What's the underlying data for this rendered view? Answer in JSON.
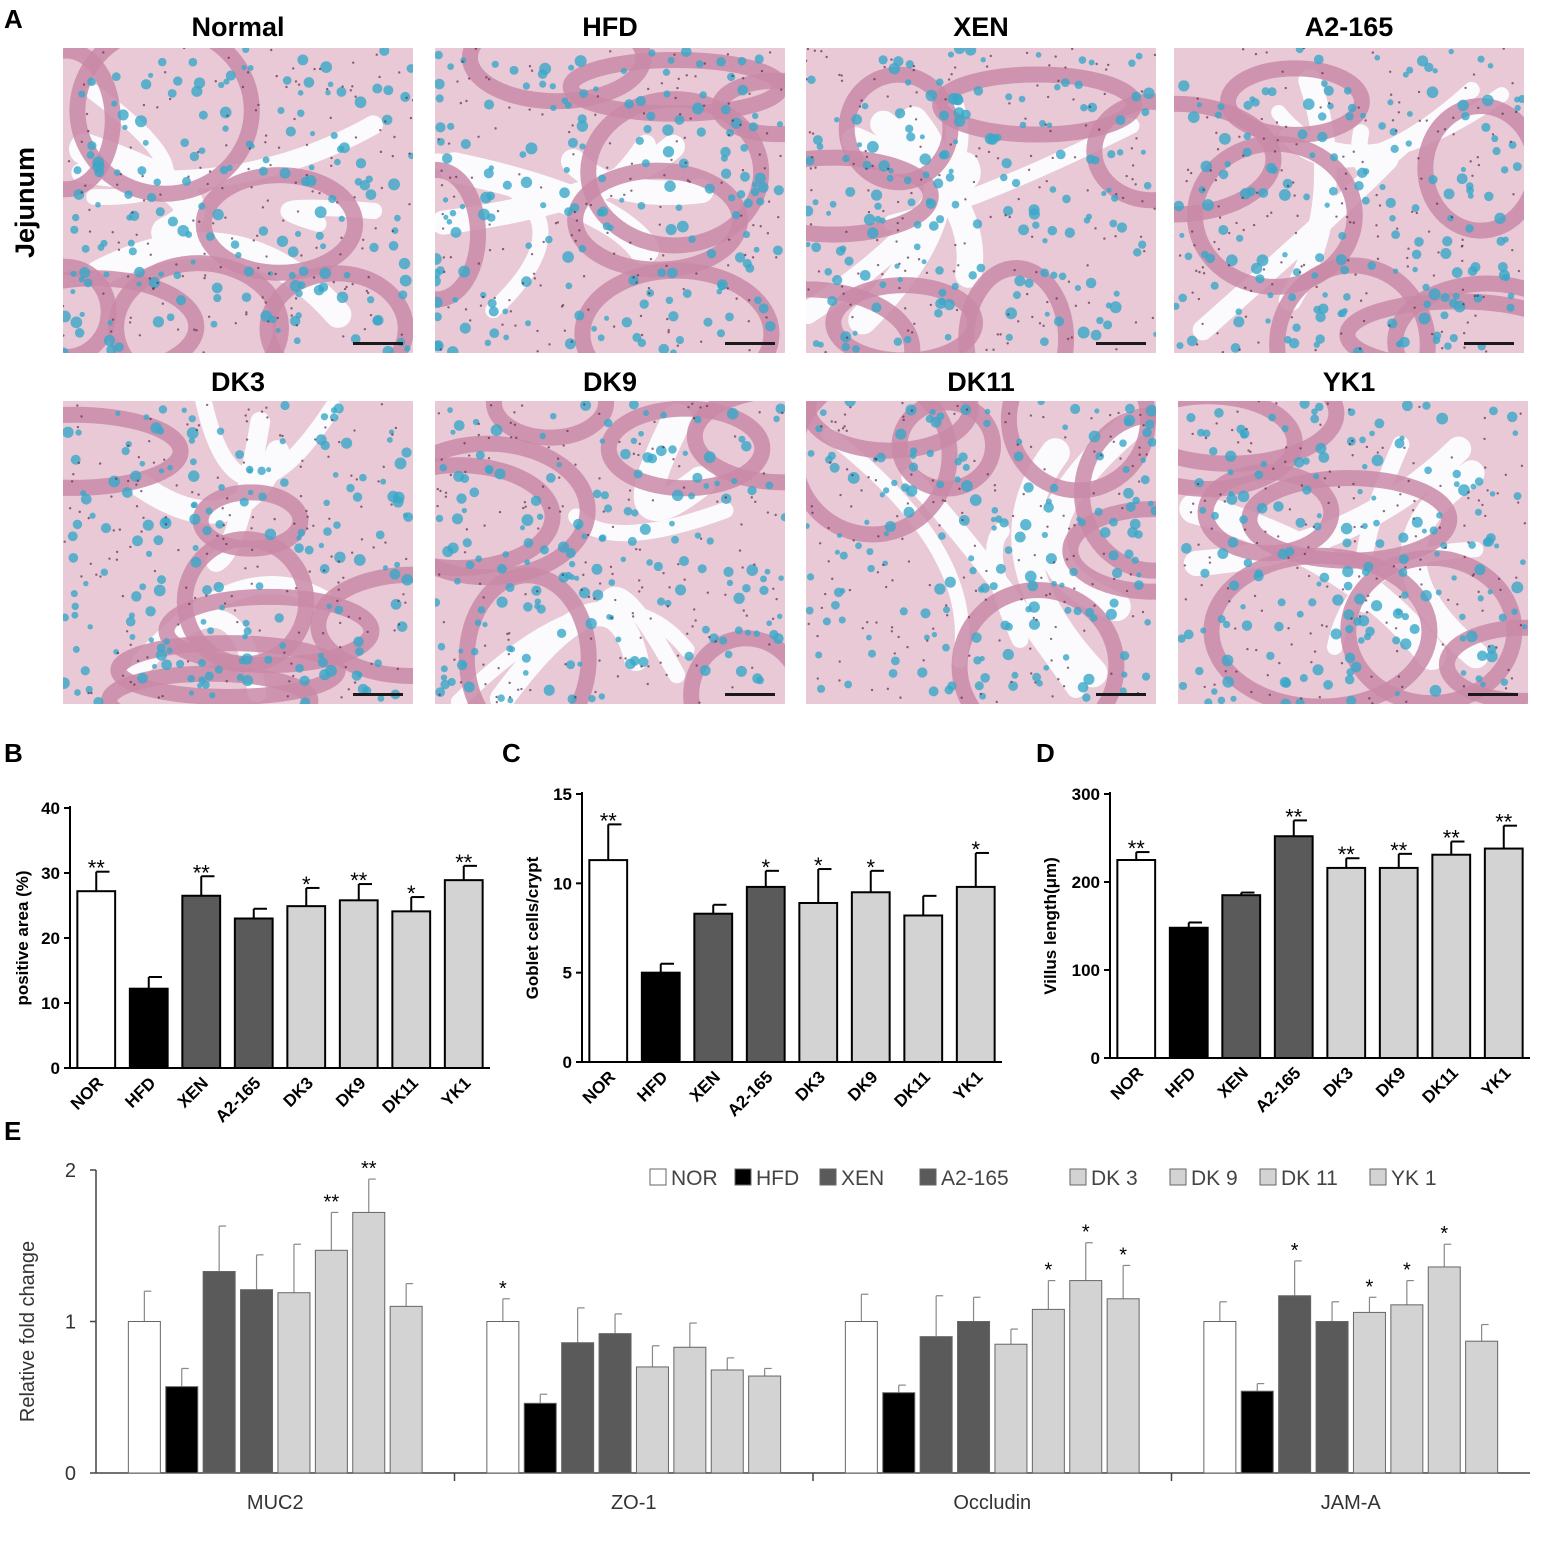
{
  "panels": {
    "a": "A",
    "b": "B",
    "c": "C",
    "d": "D",
    "e": "E"
  },
  "micrographs": {
    "row_label": "Jejunum",
    "titles": [
      "Normal",
      "HFD",
      "XEN",
      "A2-165",
      "DK3",
      "DK9",
      "DK11",
      "YK1"
    ]
  },
  "colors": {
    "white_bar": "#ffffff",
    "black_bar": "#000000",
    "dark_gray_bar": "#5a5a5a",
    "light_gray_bar": "#d3d3d3",
    "tissue_pink": "#c98aa8",
    "goblet_blue": "#3aa8c8"
  },
  "chart_data": [
    {
      "id": "B",
      "type": "bar",
      "ylabel": "positive area (%)",
      "ylim": [
        0,
        40
      ],
      "yticks": [
        0,
        10,
        20,
        30,
        40
      ],
      "categories": [
        "NOR",
        "HFD",
        "XEN",
        "A2-165",
        "DK3",
        "DK9",
        "DK11",
        "YK1"
      ],
      "values": [
        27.2,
        12.2,
        26.5,
        23.0,
        24.9,
        25.8,
        24.1,
        28.9
      ],
      "errors": [
        3.0,
        1.8,
        3.0,
        1.5,
        2.8,
        2.5,
        2.2,
        2.2
      ],
      "significance": [
        "**",
        "",
        "**",
        "",
        "*",
        "**",
        "*",
        "**"
      ],
      "fills": [
        "white",
        "black",
        "dark",
        "dark",
        "light",
        "light",
        "light",
        "light"
      ]
    },
    {
      "id": "C",
      "type": "bar",
      "ylabel": "Goblet cells/crypt",
      "ylim": [
        0,
        15
      ],
      "yticks": [
        0,
        5,
        10,
        15
      ],
      "categories": [
        "NOR",
        "HFD",
        "XEN",
        "A2-165",
        "DK3",
        "DK9",
        "DK11",
        "YK1"
      ],
      "values": [
        11.3,
        5.0,
        8.3,
        9.8,
        8.9,
        9.5,
        8.2,
        9.8
      ],
      "errors": [
        2.0,
        0.5,
        0.5,
        0.9,
        1.9,
        1.2,
        1.1,
        1.9
      ],
      "significance": [
        "**",
        "",
        "",
        "*",
        "*",
        "*",
        "",
        "*"
      ],
      "fills": [
        "white",
        "black",
        "dark",
        "dark",
        "light",
        "light",
        "light",
        "light"
      ]
    },
    {
      "id": "D",
      "type": "bar",
      "ylabel": "Villus length(μm)",
      "ylim": [
        0,
        300
      ],
      "yticks": [
        0,
        100,
        200,
        300
      ],
      "categories": [
        "NOR",
        "HFD",
        "XEN",
        "A2-165",
        "DK3",
        "DK9",
        "DK11",
        "YK1"
      ],
      "values": [
        225,
        148,
        185,
        252,
        216,
        216,
        231,
        238
      ],
      "errors": [
        9,
        6,
        3,
        18,
        11,
        16,
        15,
        26
      ],
      "significance": [
        "**",
        "",
        "",
        "**",
        "**",
        "**",
        "**",
        "**"
      ],
      "fills": [
        "white",
        "black",
        "dark",
        "dark",
        "light",
        "light",
        "light",
        "light"
      ]
    },
    {
      "id": "E",
      "type": "bar",
      "ylabel": "Relative fold change",
      "ylim": [
        0,
        2
      ],
      "yticks": [
        0,
        1,
        2
      ],
      "categories": [
        "MUC2",
        "ZO-1",
        "Occludin",
        "JAM-A"
      ],
      "legend": [
        "NOR",
        "HFD",
        "XEN",
        "A2-165",
        "DK 3",
        "DK 9",
        "DK 11",
        "YK 1"
      ],
      "legend_position": "top-right",
      "fills": [
        "white",
        "black",
        "dark",
        "dark",
        "light",
        "light",
        "light",
        "light"
      ],
      "series": [
        {
          "name": "NOR",
          "values": [
            1.0,
            1.0,
            1.0,
            1.0
          ],
          "errors": [
            0.2,
            0.15,
            0.18,
            0.13
          ],
          "significance": [
            "",
            "*",
            "",
            ""
          ]
        },
        {
          "name": "HFD",
          "values": [
            0.57,
            0.46,
            0.53,
            0.54
          ],
          "errors": [
            0.12,
            0.06,
            0.05,
            0.05
          ],
          "significance": [
            "",
            "",
            "",
            ""
          ]
        },
        {
          "name": "XEN",
          "values": [
            1.33,
            0.86,
            0.9,
            1.17
          ],
          "errors": [
            0.3,
            0.23,
            0.27,
            0.23
          ],
          "significance": [
            "",
            "",
            "",
            "*"
          ]
        },
        {
          "name": "A2-165",
          "values": [
            1.21,
            0.92,
            1.0,
            1.0
          ],
          "errors": [
            0.23,
            0.13,
            0.16,
            0.13
          ],
          "significance": [
            "",
            "",
            "",
            ""
          ]
        },
        {
          "name": "DK 3",
          "values": [
            1.19,
            0.7,
            0.85,
            1.06
          ],
          "errors": [
            0.32,
            0.14,
            0.1,
            0.1
          ],
          "significance": [
            "",
            "",
            "",
            "*"
          ]
        },
        {
          "name": "DK 9",
          "values": [
            1.47,
            0.83,
            1.08,
            1.11
          ],
          "errors": [
            0.25,
            0.16,
            0.19,
            0.16
          ],
          "significance": [
            "**",
            "",
            "*",
            "*"
          ]
        },
        {
          "name": "DK 11",
          "values": [
            1.72,
            0.68,
            1.27,
            1.36
          ],
          "errors": [
            0.22,
            0.08,
            0.25,
            0.15
          ],
          "significance": [
            "**",
            "",
            "*",
            "*"
          ]
        },
        {
          "name": "YK 1",
          "values": [
            1.1,
            0.64,
            1.15,
            0.87
          ],
          "errors": [
            0.15,
            0.05,
            0.22,
            0.11
          ],
          "significance": [
            "",
            "",
            "*",
            ""
          ]
        }
      ]
    }
  ]
}
